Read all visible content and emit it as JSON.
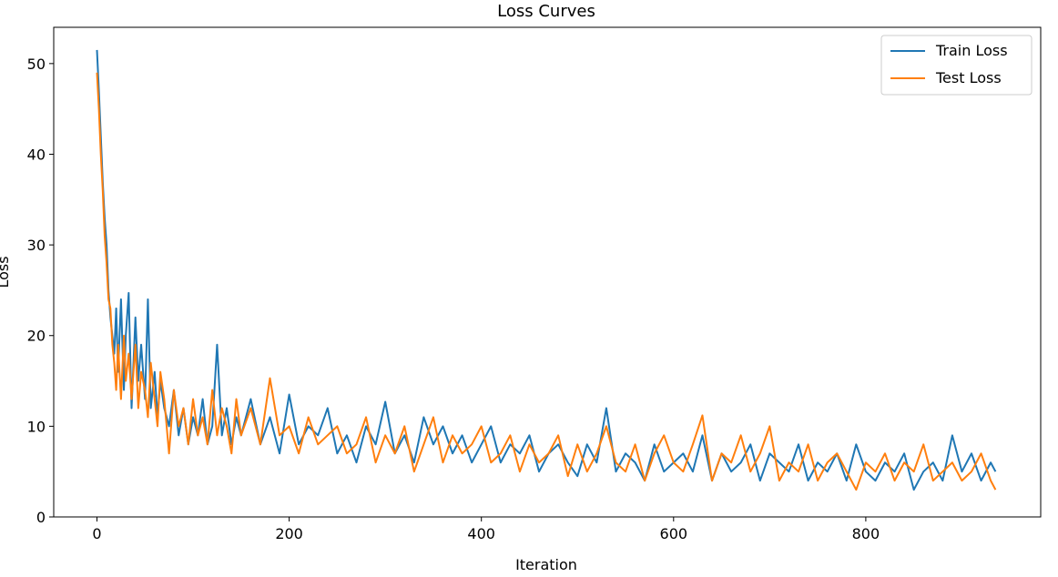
{
  "chart_data": {
    "type": "line",
    "title": "Loss Curves",
    "xlabel": "Iteration",
    "ylabel": "Loss",
    "xlim": [
      -45,
      982
    ],
    "ylim": [
      0,
      54
    ],
    "xticks": [
      0,
      200,
      400,
      600,
      800
    ],
    "yticks": [
      0,
      10,
      20,
      30,
      40,
      50
    ],
    "grid": false,
    "legend_position": "top-right",
    "series": [
      {
        "name": "Train Loss",
        "color": "#1f77b4",
        "x": [
          0,
          2,
          4,
          6,
          8,
          10,
          12,
          14,
          16,
          18,
          20,
          22,
          25,
          28,
          30,
          33,
          36,
          40,
          43,
          46,
          50,
          53,
          56,
          60,
          63,
          66,
          70,
          75,
          80,
          85,
          90,
          95,
          100,
          105,
          110,
          115,
          120,
          125,
          130,
          135,
          140,
          145,
          150,
          160,
          170,
          180,
          190,
          200,
          210,
          220,
          230,
          240,
          250,
          260,
          270,
          280,
          290,
          300,
          310,
          320,
          330,
          340,
          350,
          360,
          370,
          380,
          390,
          400,
          410,
          420,
          430,
          440,
          450,
          460,
          470,
          480,
          490,
          500,
          510,
          520,
          530,
          540,
          550,
          560,
          570,
          580,
          590,
          600,
          610,
          620,
          630,
          640,
          650,
          660,
          670,
          680,
          690,
          700,
          710,
          720,
          730,
          740,
          750,
          760,
          770,
          780,
          790,
          800,
          810,
          820,
          830,
          840,
          850,
          860,
          870,
          880,
          890,
          900,
          910,
          920,
          930,
          935
        ],
        "y": [
          51.5,
          47,
          42,
          37,
          33,
          30,
          25,
          22,
          20,
          18,
          23,
          16,
          24,
          14,
          20,
          24.7,
          12,
          22,
          15,
          19,
          13,
          24,
          12,
          16,
          11,
          15,
          12,
          10,
          14,
          9,
          12,
          8,
          11,
          9,
          13,
          8,
          10,
          19,
          9,
          12,
          8,
          11,
          9,
          13,
          8,
          11,
          7,
          13.5,
          8,
          10,
          9,
          12,
          7,
          9,
          6,
          10,
          8,
          12.7,
          7,
          9,
          6,
          11,
          8,
          10,
          7,
          9,
          6,
          8,
          10,
          6,
          8,
          7,
          9,
          5,
          7,
          8,
          6,
          4.5,
          8,
          6,
          12,
          5,
          7,
          6,
          4,
          8,
          5,
          6,
          7,
          5,
          9,
          4,
          7,
          5,
          6,
          8,
          4,
          7,
          6,
          5,
          8,
          4,
          6,
          5,
          7,
          4,
          8,
          5,
          4,
          6,
          5,
          7,
          3,
          5,
          6,
          4,
          9,
          5,
          7,
          4,
          6,
          5
        ]
      },
      {
        "name": "Test Loss",
        "color": "#ff7f0e",
        "x": [
          0,
          2,
          4,
          6,
          8,
          10,
          12,
          14,
          16,
          18,
          20,
          22,
          25,
          28,
          30,
          33,
          36,
          40,
          43,
          46,
          50,
          53,
          56,
          60,
          63,
          66,
          70,
          75,
          80,
          85,
          90,
          95,
          100,
          105,
          110,
          115,
          120,
          125,
          130,
          135,
          140,
          145,
          150,
          160,
          170,
          180,
          190,
          200,
          210,
          220,
          230,
          240,
          250,
          260,
          270,
          280,
          290,
          300,
          310,
          320,
          330,
          340,
          350,
          360,
          370,
          380,
          390,
          400,
          410,
          420,
          430,
          440,
          450,
          460,
          470,
          480,
          490,
          500,
          510,
          520,
          530,
          540,
          550,
          560,
          570,
          580,
          590,
          600,
          610,
          620,
          630,
          640,
          650,
          660,
          670,
          680,
          690,
          700,
          710,
          720,
          730,
          740,
          750,
          760,
          770,
          780,
          790,
          800,
          810,
          820,
          830,
          840,
          850,
          860,
          870,
          880,
          890,
          900,
          910,
          920,
          930,
          935
        ],
        "y": [
          49,
          45,
          40,
          36,
          31,
          28,
          24,
          23,
          19,
          17,
          14,
          19,
          13,
          20,
          15,
          18,
          13,
          19,
          12,
          16,
          14,
          11,
          17,
          13,
          10,
          16,
          13,
          7,
          14,
          10,
          12,
          8,
          13,
          9,
          11,
          8,
          14,
          9,
          12,
          10,
          7,
          13,
          9,
          12,
          8,
          15.3,
          9,
          10,
          7,
          11,
          8,
          9,
          10,
          7,
          8,
          11,
          6,
          9,
          7,
          10,
          5,
          8,
          11,
          6,
          9,
          7,
          8,
          10,
          6,
          7,
          9,
          5,
          8,
          6,
          7,
          9,
          4.5,
          8,
          5,
          7,
          10,
          6,
          5,
          8,
          4,
          7,
          9,
          6,
          5,
          8,
          11.2,
          4,
          7,
          6,
          9,
          5,
          7,
          10,
          4,
          6,
          5,
          8,
          4,
          6,
          7,
          5,
          3,
          6,
          5,
          7,
          4,
          6,
          5,
          8,
          4,
          5,
          6,
          4,
          5,
          7,
          4,
          3
        ]
      }
    ]
  }
}
